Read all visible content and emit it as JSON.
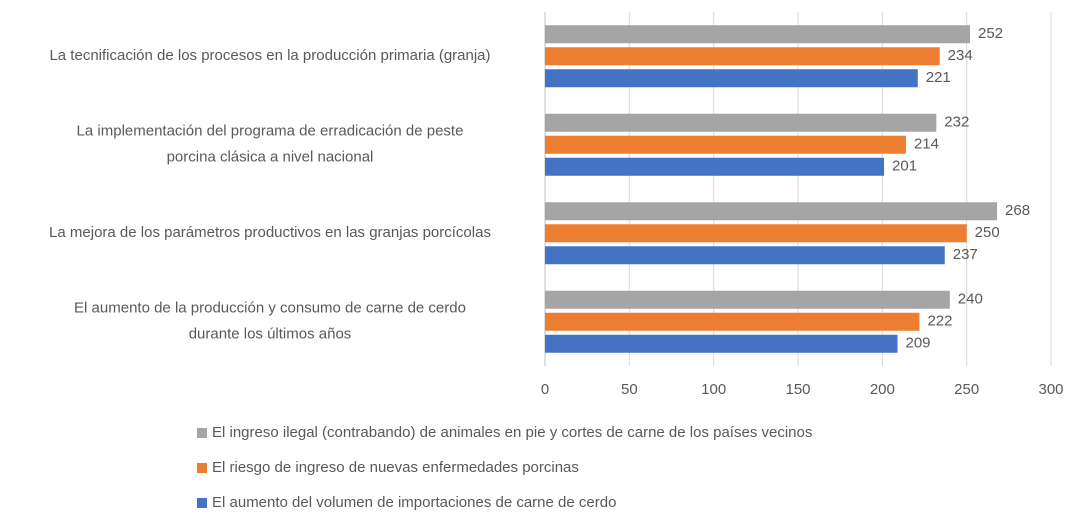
{
  "chart_data": {
    "type": "barh",
    "categories": [
      [
        "La tecnificación de los procesos en la producción primaria (granja)"
      ],
      [
        "La implementación del programa de erradicación de peste",
        "porcina clásica a nivel nacional"
      ],
      [
        "La mejora de los parámetros productivos en las granjas porcícolas"
      ],
      [
        "El aumento de la producción y consumo de carne de cerdo",
        "durante los últimos años"
      ]
    ],
    "series": [
      {
        "name": "El ingreso ilegal (contrabando) de animales en pie y cortes de carne de los países vecinos",
        "color": "#a5a5a5",
        "values": [
          252,
          232,
          268,
          240
        ]
      },
      {
        "name": "El riesgo de ingreso de nuevas enfermedades porcinas",
        "color": "#ed7d31",
        "values": [
          234,
          214,
          250,
          222
        ]
      },
      {
        "name": "El aumento del volumen de importaciones de carne de cerdo",
        "color": "#4472c4",
        "values": [
          221,
          201,
          237,
          209
        ]
      }
    ],
    "xlim": [
      0,
      300
    ],
    "xticks": [
      0,
      50,
      100,
      150,
      200,
      250,
      300
    ],
    "grid": true
  }
}
